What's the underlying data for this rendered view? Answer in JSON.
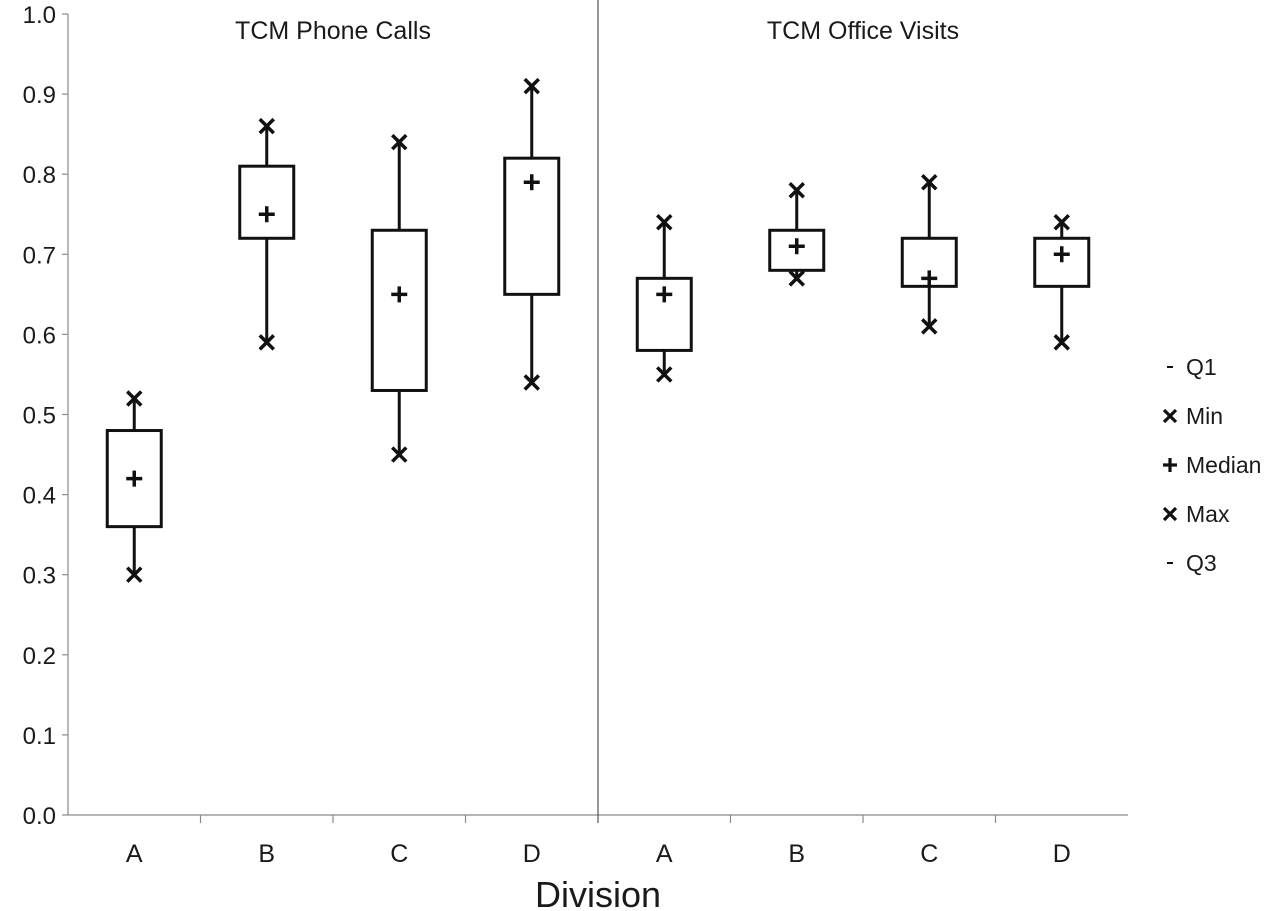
{
  "chart_data": {
    "type": "box",
    "ylim": [
      0.0,
      1.0
    ],
    "yticks": [
      "0.0",
      "0.1",
      "0.2",
      "0.3",
      "0.4",
      "0.5",
      "0.6",
      "0.7",
      "0.8",
      "0.9",
      "1.0"
    ],
    "xlabel": "Division",
    "grid": false,
    "legend_position": "right",
    "panels": [
      {
        "title": "TCM Phone Calls",
        "categories": [
          "A",
          "B",
          "C",
          "D"
        ],
        "boxes": [
          {
            "category": "A",
            "min": 0.3,
            "q1": 0.36,
            "median": 0.42,
            "q3": 0.48,
            "max": 0.52
          },
          {
            "category": "B",
            "min": 0.59,
            "q1": 0.72,
            "median": 0.75,
            "q3": 0.81,
            "max": 0.86
          },
          {
            "category": "C",
            "min": 0.45,
            "q1": 0.53,
            "median": 0.65,
            "q3": 0.73,
            "max": 0.84
          },
          {
            "category": "D",
            "min": 0.54,
            "q1": 0.65,
            "median": 0.79,
            "q3": 0.82,
            "max": 0.91
          }
        ]
      },
      {
        "title": "TCM Office Visits",
        "categories": [
          "A",
          "B",
          "C",
          "D"
        ],
        "boxes": [
          {
            "category": "A",
            "min": 0.55,
            "q1": 0.58,
            "median": 0.65,
            "q3": 0.67,
            "max": 0.74
          },
          {
            "category": "B",
            "min": 0.67,
            "q1": 0.68,
            "median": 0.71,
            "q3": 0.73,
            "max": 0.78
          },
          {
            "category": "C",
            "min": 0.61,
            "q1": 0.66,
            "median": 0.67,
            "q3": 0.72,
            "max": 0.79
          },
          {
            "category": "D",
            "min": 0.59,
            "q1": 0.66,
            "median": 0.7,
            "q3": 0.72,
            "max": 0.74
          }
        ]
      }
    ],
    "legend": [
      {
        "marker": "dash",
        "label": "Q1"
      },
      {
        "marker": "x",
        "label": "Min"
      },
      {
        "marker": "plus",
        "label": "Median"
      },
      {
        "marker": "x",
        "label": "Max"
      },
      {
        "marker": "dash",
        "label": "Q3"
      }
    ]
  }
}
